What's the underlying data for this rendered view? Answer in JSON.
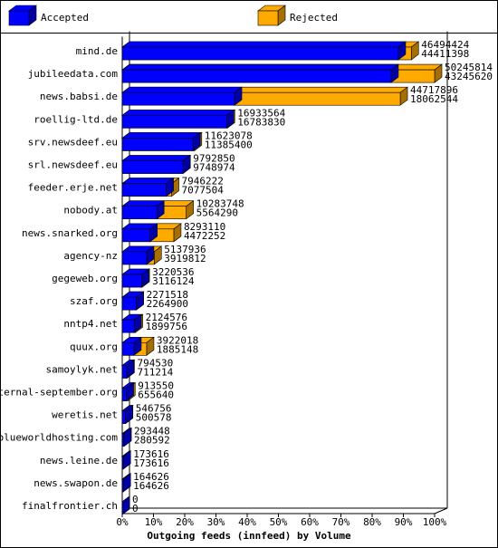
{
  "chart_data": {
    "type": "bar3d",
    "title": "Outgoing feeds (innfeed) by Volume",
    "legend": [
      {
        "name": "Accepted",
        "color": "#0000ff"
      },
      {
        "name": "Rejected",
        "color": "#ffaa00"
      }
    ],
    "categories": [
      "mind.de",
      "jubileedata.com",
      "news.babsi.de",
      "roellig-ltd.de",
      "srv.newsdeef.eu",
      "srl.newsdeef.eu",
      "feeder.erje.net",
      "nobody.at",
      "news.snarked.org",
      "agency-nz",
      "gegeweb.org",
      "szaf.org",
      "nntp4.net",
      "quux.org",
      "samoylyk.net",
      "eternal-september.org",
      "weretis.net",
      "blueworldhosting.com",
      "news.leine.de",
      "news.swapon.de",
      "finalfrontier.ch"
    ],
    "totals": [
      46494424,
      50245814,
      44717896,
      16933564,
      11623078,
      9792850,
      7946222,
      10283748,
      8293110,
      5137936,
      3220536,
      2271518,
      2124576,
      3922018,
      794530,
      913550,
      546756,
      293448,
      173616,
      164626,
      0
    ],
    "accepted": [
      44411398,
      43245620,
      18062544,
      16783830,
      11385400,
      9748974,
      7077504,
      5564290,
      4472252,
      3919812,
      3116124,
      2264900,
      1899756,
      1885148,
      711214,
      655640,
      500578,
      280592,
      173616,
      164626,
      0
    ],
    "xlim": [
      0,
      50245814
    ],
    "xticks": [
      {
        "value": 0,
        "label": "0%"
      },
      {
        "value": 5024581.4,
        "label": "10%"
      },
      {
        "value": 10049162.8,
        "label": "20%"
      },
      {
        "value": 15073744.2,
        "label": "30%"
      },
      {
        "value": 20098325.6,
        "label": "40%"
      },
      {
        "value": 25122907,
        "label": "50%"
      },
      {
        "value": 30147488.4,
        "label": "60%"
      },
      {
        "value": 35172069.8,
        "label": "70%"
      },
      {
        "value": 40196651.2,
        "label": "80%"
      },
      {
        "value": 45221232.6,
        "label": "90%"
      },
      {
        "value": 50245814,
        "label": "100%"
      }
    ]
  }
}
